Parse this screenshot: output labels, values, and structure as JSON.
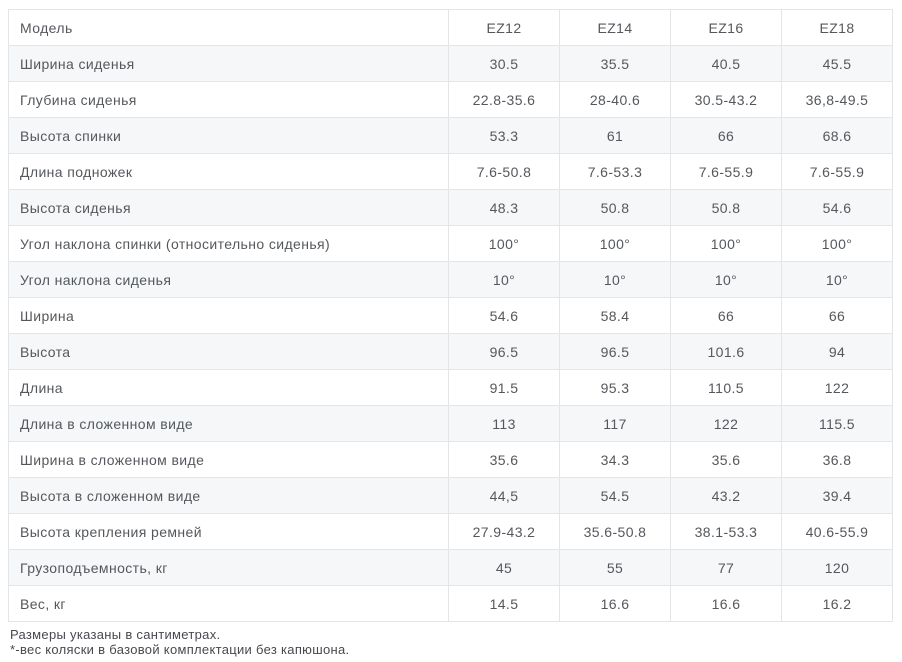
{
  "table": {
    "header": {
      "label": "Модель",
      "columns": [
        "EZ12",
        "EZ14",
        "EZ16",
        "EZ18"
      ]
    },
    "rows": [
      {
        "label": "Ширина сиденья",
        "values": [
          "30.5",
          "35.5",
          "40.5",
          "45.5"
        ]
      },
      {
        "label": "Глубина сиденья",
        "values": [
          "22.8-35.6",
          "28-40.6",
          "30.5-43.2",
          "36,8-49.5"
        ]
      },
      {
        "label": "Высота спинки",
        "values": [
          "53.3",
          "61",
          "66",
          "68.6"
        ]
      },
      {
        "label": "Длина подножек",
        "values": [
          "7.6-50.8",
          "7.6-53.3",
          "7.6-55.9",
          "7.6-55.9"
        ]
      },
      {
        "label": "Высота сиденья",
        "values": [
          "48.3",
          "50.8",
          "50.8",
          "54.6"
        ]
      },
      {
        "label": "Угол наклона спинки (относительно сиденья)",
        "values": [
          "100°",
          "100°",
          "100°",
          "100°"
        ]
      },
      {
        "label": "Угол наклона сиденья",
        "values": [
          "10°",
          "10°",
          "10°",
          "10°"
        ]
      },
      {
        "label": "Ширина",
        "values": [
          "54.6",
          "58.4",
          "66",
          "66"
        ]
      },
      {
        "label": "Высота",
        "values": [
          "96.5",
          "96.5",
          "101.6",
          "94"
        ]
      },
      {
        "label": "Длина",
        "values": [
          "91.5",
          "95.3",
          "110.5",
          "122"
        ]
      },
      {
        "label": "Длина в сложенном виде",
        "values": [
          "113",
          "117",
          "122",
          "115.5"
        ]
      },
      {
        "label": "Ширина в сложенном виде",
        "values": [
          "35.6",
          "34.3",
          "35.6",
          "36.8"
        ]
      },
      {
        "label": "Высота в сложенном виде",
        "values": [
          "44,5",
          "54.5",
          "43.2",
          "39.4"
        ]
      },
      {
        "label": "Высота крепления ремней",
        "values": [
          "27.9-43.2",
          "35.6-50.8",
          "38.1-53.3",
          "40.6-55.9"
        ]
      },
      {
        "label": "Грузоподъемность, кг",
        "values": [
          "45",
          "55",
          "77",
          "120"
        ]
      },
      {
        "label": "Вес, кг",
        "values": [
          "14.5",
          "16.6",
          "16.6",
          "16.2"
        ]
      }
    ]
  },
  "footnotes": [
    "Размеры указаны в сантиметрах.",
    "*-вес коляски в базовой комплектации без капюшона."
  ],
  "colors": {
    "border": "#e2e6e9",
    "row_alt_bg": "#f5f7f8",
    "text": "#54585d"
  }
}
